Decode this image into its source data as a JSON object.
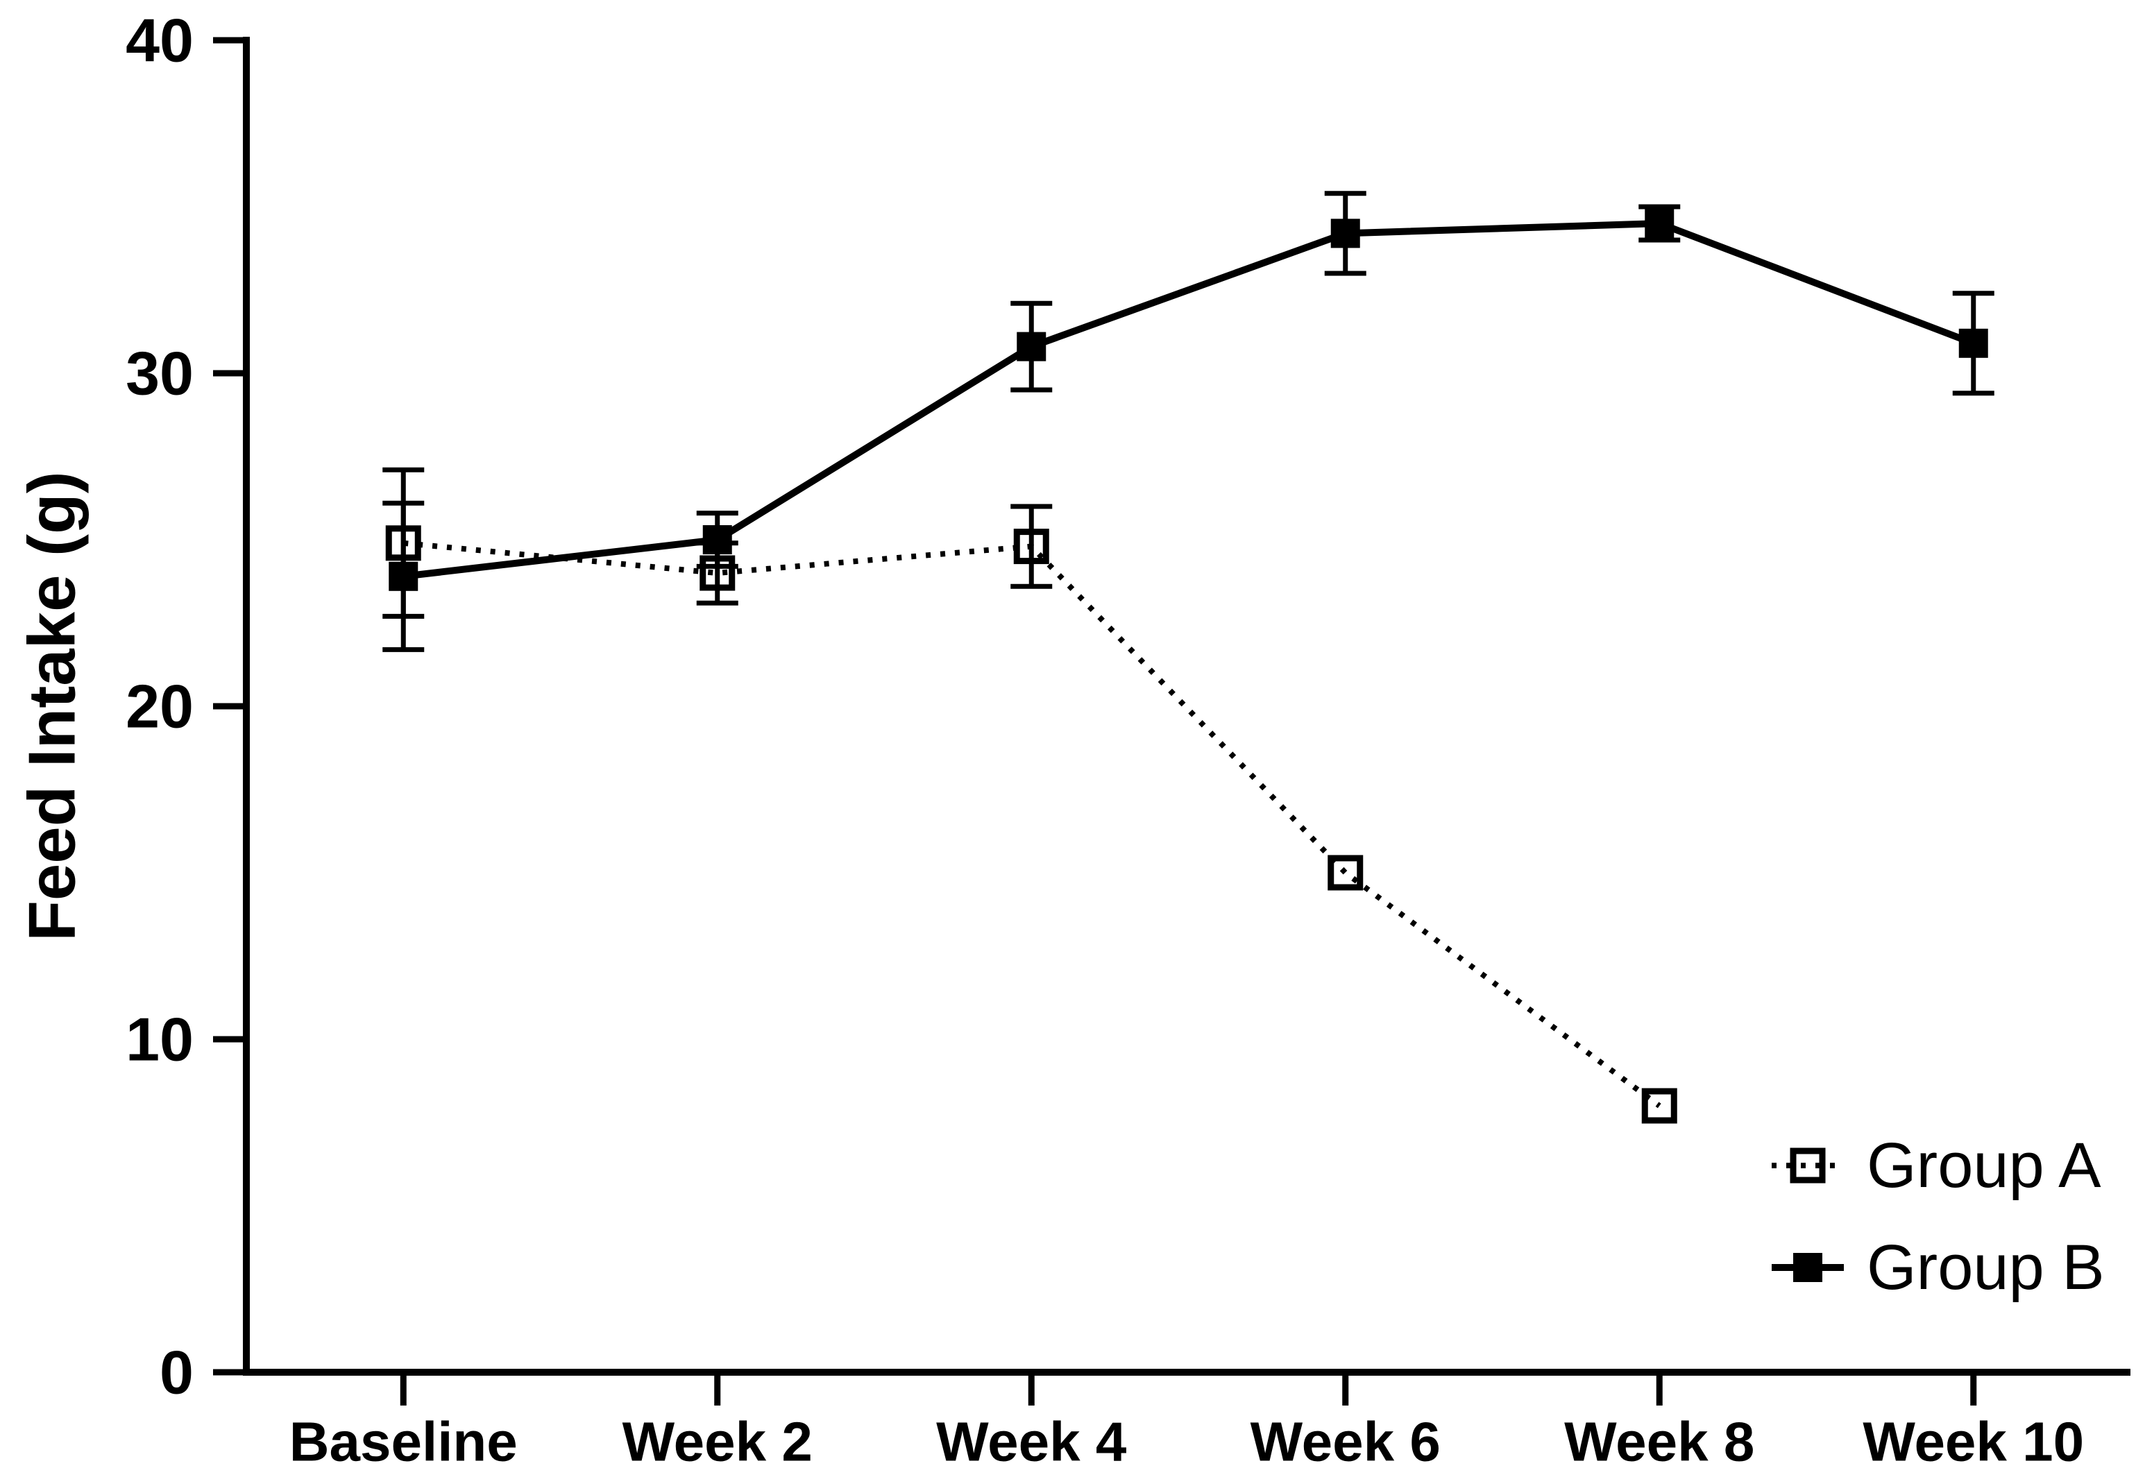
{
  "chart_data": {
    "type": "line",
    "title": "",
    "xlabel": "",
    "ylabel": "Feed Intake (g)",
    "ylim": [
      0,
      40
    ],
    "yticks": [
      0,
      10,
      20,
      30,
      40
    ],
    "categories": [
      "Baseline",
      "Week 2",
      "Week 4",
      "Week 6",
      "Week 8",
      "Week 10"
    ],
    "series": [
      {
        "name": "Group A",
        "marker": "open-square",
        "line_style": "dotted",
        "values": [
          24.9,
          24.0,
          24.8,
          15.0,
          8.0,
          null
        ],
        "errors": [
          2.2,
          0.9,
          1.2,
          0,
          0,
          null
        ]
      },
      {
        "name": "Group B",
        "marker": "filled-square",
        "line_style": "solid",
        "values": [
          23.9,
          25.0,
          30.8,
          34.2,
          34.5,
          30.9
        ],
        "errors": [
          2.2,
          0.8,
          1.3,
          1.2,
          0.5,
          1.5
        ]
      }
    ],
    "legend_position": "bottom-right",
    "grid": false,
    "error_bars": "mean ± error, capped",
    "colors": {
      "foreground": "#000000",
      "background": "#ffffff"
    }
  }
}
